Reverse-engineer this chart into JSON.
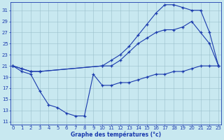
{
  "title": "Graphe des températures (°c)",
  "bg_color": "#c8e8f0",
  "grid_color": "#9bbfcc",
  "line_color": "#1a3aad",
  "xlim": [
    -0.3,
    23.3
  ],
  "ylim": [
    10.5,
    32.5
  ],
  "xticks": [
    0,
    1,
    2,
    3,
    4,
    5,
    6,
    7,
    8,
    9,
    10,
    11,
    12,
    13,
    14,
    15,
    16,
    17,
    18,
    19,
    20,
    21,
    22,
    23
  ],
  "yticks": [
    11,
    13,
    15,
    17,
    19,
    21,
    23,
    25,
    27,
    29,
    31
  ],
  "line_top_x": [
    0,
    1,
    2,
    3,
    10,
    11,
    12,
    13,
    14,
    15,
    16,
    17,
    18,
    19,
    20,
    21,
    22,
    23
  ],
  "line_top_y": [
    21,
    20.5,
    20,
    20,
    21,
    22,
    23,
    24.5,
    26.5,
    28.5,
    30.5,
    32,
    32,
    31.5,
    31,
    31,
    27,
    21
  ],
  "line_mid_x": [
    0,
    1,
    2,
    3,
    10,
    11,
    12,
    13,
    14,
    15,
    16,
    17,
    18,
    19,
    20,
    21,
    22,
    23
  ],
  "line_mid_y": [
    21,
    20.5,
    20,
    20,
    21,
    21,
    22,
    23.5,
    25,
    26,
    27,
    27.5,
    27.5,
    28,
    29,
    27,
    25,
    21
  ],
  "line_bot_x": [
    0,
    1,
    2,
    3,
    4,
    5,
    6,
    7,
    8,
    9,
    10,
    11,
    12,
    13,
    14,
    15,
    16,
    17,
    18,
    19,
    20,
    21,
    22,
    23
  ],
  "line_bot_y": [
    21,
    20,
    19.5,
    16.5,
    14,
    13.5,
    12.5,
    12,
    12,
    19.5,
    17.5,
    17.5,
    18,
    18,
    18.5,
    19,
    19.5,
    19.5,
    20,
    20,
    20.5,
    21,
    21,
    21
  ]
}
